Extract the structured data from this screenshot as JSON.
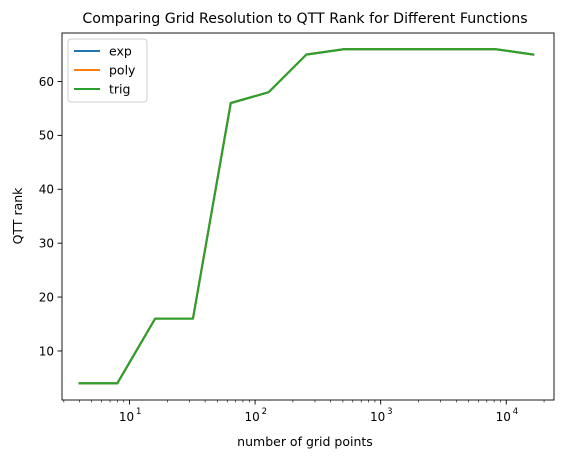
{
  "chart_data": {
    "type": "line",
    "title": "Comparing Grid Resolution to QTT Rank for Different Functions",
    "xlabel": "number of grid points",
    "ylabel": "QTT rank",
    "xscale": "log",
    "xlim": [
      2.9,
      24000
    ],
    "ylim": [
      0.9,
      69
    ],
    "x_ticks": [
      {
        "value": 10,
        "label": "10",
        "exp": "1"
      },
      {
        "value": 100,
        "label": "10",
        "exp": "2"
      },
      {
        "value": 1000,
        "label": "10",
        "exp": "3"
      },
      {
        "value": 10000,
        "label": "10",
        "exp": "4"
      }
    ],
    "y_ticks": [
      10,
      20,
      30,
      40,
      50,
      60
    ],
    "x": [
      4,
      8,
      16,
      32,
      64,
      128,
      256,
      512,
      1024,
      2048,
      4096,
      8192,
      16384
    ],
    "series": [
      {
        "name": "exp",
        "color": "#1f77b4",
        "values": [
          4,
          4,
          16,
          16,
          56,
          58,
          65,
          66,
          66,
          66,
          66,
          66,
          65
        ]
      },
      {
        "name": "poly",
        "color": "#ff7f0e",
        "values": [
          4,
          4,
          16,
          16,
          56,
          58,
          65,
          66,
          66,
          66,
          66,
          66,
          65
        ]
      },
      {
        "name": "trig",
        "color": "#2ca02c",
        "values": [
          4,
          4,
          16,
          16,
          56,
          58,
          65,
          66,
          66,
          66,
          66,
          66,
          65
        ]
      }
    ],
    "grid": false,
    "legend_position": "top-left"
  }
}
